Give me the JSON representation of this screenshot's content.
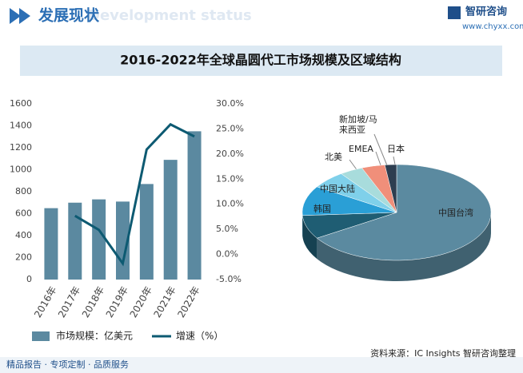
{
  "header": {
    "title": "发展现状",
    "watermark": "Development status",
    "brand": "智研咨询",
    "url": "www.chyxx.com"
  },
  "title": "2016-2022年全球晶圆代工市场规模及区域结构",
  "chart_data": [
    {
      "type": "bar",
      "categories": [
        "2016年",
        "2017年",
        "2018年",
        "2019年",
        "2020年",
        "2021年",
        "2022年"
      ],
      "series": [
        {
          "name": "市场规模：亿美元",
          "color": "#5b89a0",
          "values": [
            650,
            700,
            730,
            710,
            870,
            1090,
            1350
          ]
        },
        {
          "name": "增速（%）",
          "type": "line",
          "axis": "y2",
          "color": "#0d5a72",
          "values": [
            null,
            7.7,
            4.9,
            -1.8,
            20.9,
            25.9,
            23.5
          ]
        }
      ],
      "ylim": [
        0,
        1600
      ],
      "yticks": [
        0,
        200,
        400,
        600,
        800,
        1000,
        1200,
        1400,
        1600
      ],
      "y2lim": [
        -5,
        30
      ],
      "y2ticks": [
        {
          "value": -5,
          "label": "-5.0%"
        },
        {
          "value": 0,
          "label": "0.0%"
        },
        {
          "value": 5,
          "label": "5.0%"
        },
        {
          "value": 10,
          "label": "10.0%"
        },
        {
          "value": 15,
          "label": "15.0%"
        },
        {
          "value": 20,
          "label": "20.0%"
        },
        {
          "value": 25,
          "label": "25.0%"
        },
        {
          "value": 30,
          "label": "30.0%"
        }
      ]
    },
    {
      "type": "pie",
      "categories": [
        "中国台湾",
        "韩国",
        "中国大陆",
        "北美",
        "EMEA",
        "新加坡/马来西亚",
        "日本"
      ],
      "values": [
        66,
        8,
        10,
        6,
        4,
        4,
        2
      ],
      "colors": [
        "#5b8aa0",
        "#1f5d73",
        "#2a9fd6",
        "#7fd0ea",
        "#a8dcdc",
        "#f08f7a",
        "#2d3e50"
      ]
    }
  ],
  "source": "资料来源：IC Insights 智研咨询整理",
  "footer": "精品报告 · 专项定制 · 品质服务"
}
